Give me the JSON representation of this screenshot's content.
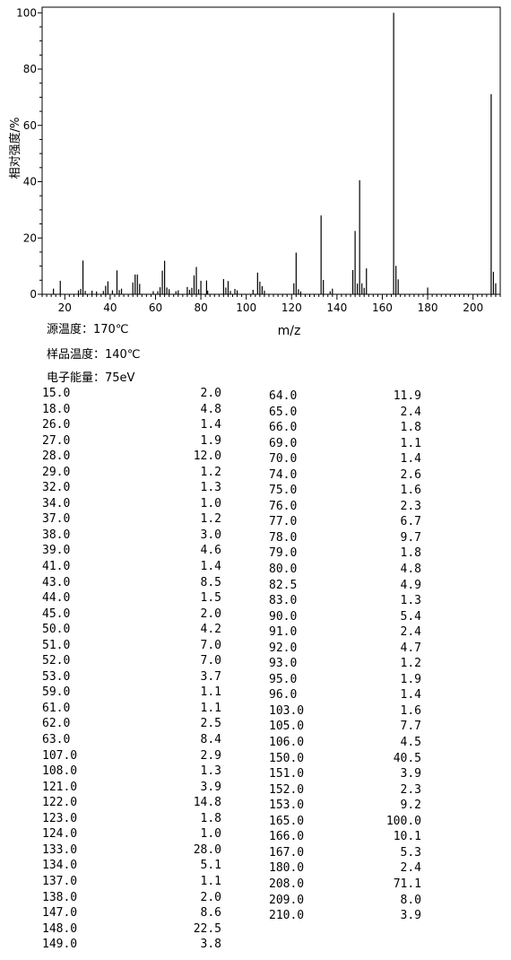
{
  "chart_data": {
    "type": "bar",
    "ylabel": "相对强度/%",
    "xlabel": "m/z",
    "xlim": [
      10,
      212
    ],
    "ylim": [
      0,
      102
    ],
    "x_ticks": [
      20,
      40,
      60,
      80,
      100,
      120,
      140,
      160,
      180,
      200
    ],
    "y_ticks": [
      0,
      20,
      40,
      60,
      80,
      100
    ],
    "peaks": [
      [
        15.0,
        2.0
      ],
      [
        18.0,
        4.8
      ],
      [
        26.0,
        1.4
      ],
      [
        27.0,
        1.9
      ],
      [
        28.0,
        12.0
      ],
      [
        29.0,
        1.2
      ],
      [
        32.0,
        1.3
      ],
      [
        34.0,
        1.0
      ],
      [
        37.0,
        1.2
      ],
      [
        38.0,
        3.0
      ],
      [
        39.0,
        4.6
      ],
      [
        41.0,
        1.4
      ],
      [
        43.0,
        8.5
      ],
      [
        44.0,
        1.5
      ],
      [
        45.0,
        2.0
      ],
      [
        50.0,
        4.2
      ],
      [
        51.0,
        7.0
      ],
      [
        52.0,
        7.0
      ],
      [
        53.0,
        3.7
      ],
      [
        59.0,
        1.1
      ],
      [
        61.0,
        1.1
      ],
      [
        62.0,
        2.5
      ],
      [
        63.0,
        8.4
      ],
      [
        64.0,
        11.9
      ],
      [
        65.0,
        2.4
      ],
      [
        66.0,
        1.8
      ],
      [
        69.0,
        1.1
      ],
      [
        70.0,
        1.4
      ],
      [
        74.0,
        2.6
      ],
      [
        75.0,
        1.6
      ],
      [
        76.0,
        2.3
      ],
      [
        77.0,
        6.7
      ],
      [
        78.0,
        9.7
      ],
      [
        79.0,
        1.8
      ],
      [
        80.0,
        4.8
      ],
      [
        82.5,
        4.9
      ],
      [
        83.0,
        1.3
      ],
      [
        90.0,
        5.4
      ],
      [
        91.0,
        2.4
      ],
      [
        92.0,
        4.7
      ],
      [
        93.0,
        1.2
      ],
      [
        95.0,
        1.9
      ],
      [
        96.0,
        1.4
      ],
      [
        103.0,
        1.6
      ],
      [
        105.0,
        7.7
      ],
      [
        106.0,
        4.5
      ],
      [
        107.0,
        2.9
      ],
      [
        108.0,
        1.3
      ],
      [
        121.0,
        3.9
      ],
      [
        122.0,
        14.8
      ],
      [
        123.0,
        1.8
      ],
      [
        124.0,
        1.0
      ],
      [
        133.0,
        28.0
      ],
      [
        134.0,
        5.1
      ],
      [
        137.0,
        1.1
      ],
      [
        138.0,
        2.0
      ],
      [
        147.0,
        8.6
      ],
      [
        148.0,
        22.5
      ],
      [
        149.0,
        3.8
      ],
      [
        150.0,
        40.5
      ],
      [
        151.0,
        3.9
      ],
      [
        152.0,
        2.3
      ],
      [
        153.0,
        9.2
      ],
      [
        165.0,
        100.0
      ],
      [
        166.0,
        10.1
      ],
      [
        167.0,
        5.3
      ],
      [
        180.0,
        2.4
      ],
      [
        208.0,
        71.1
      ],
      [
        209.0,
        8.0
      ],
      [
        210.0,
        3.9
      ]
    ]
  },
  "conditions": {
    "source_temp": "源温度：170℃",
    "sample_temp": "样品温度：140℃",
    "electron_energy": "电子能量：75eV"
  },
  "table_left": [
    [
      "15.0",
      "2.0"
    ],
    [
      "18.0",
      "4.8"
    ],
    [
      "26.0",
      "1.4"
    ],
    [
      "27.0",
      "1.9"
    ],
    [
      "28.0",
      "12.0"
    ],
    [
      "29.0",
      "1.2"
    ],
    [
      "32.0",
      "1.3"
    ],
    [
      "34.0",
      "1.0"
    ],
    [
      "37.0",
      "1.2"
    ],
    [
      "38.0",
      "3.0"
    ],
    [
      "39.0",
      "4.6"
    ],
    [
      "41.0",
      "1.4"
    ],
    [
      "43.0",
      "8.5"
    ],
    [
      "44.0",
      "1.5"
    ],
    [
      "45.0",
      "2.0"
    ],
    [
      "50.0",
      "4.2"
    ],
    [
      "51.0",
      "7.0"
    ],
    [
      "52.0",
      "7.0"
    ],
    [
      "53.0",
      "3.7"
    ],
    [
      "59.0",
      "1.1"
    ],
    [
      "61.0",
      "1.1"
    ],
    [
      "62.0",
      "2.5"
    ],
    [
      "63.0",
      "8.4"
    ],
    [
      "107.0",
      "2.9"
    ],
    [
      "108.0",
      "1.3"
    ],
    [
      "121.0",
      "3.9"
    ],
    [
      "122.0",
      "14.8"
    ],
    [
      "123.0",
      "1.8"
    ],
    [
      "124.0",
      "1.0"
    ],
    [
      "133.0",
      "28.0"
    ],
    [
      "134.0",
      "5.1"
    ],
    [
      "137.0",
      "1.1"
    ],
    [
      "138.0",
      "2.0"
    ],
    [
      "147.0",
      "8.6"
    ],
    [
      "148.0",
      "22.5"
    ],
    [
      "149.0",
      "3.8"
    ]
  ],
  "table_right": [
    [
      "64.0",
      "11.9"
    ],
    [
      "65.0",
      "2.4"
    ],
    [
      "66.0",
      "1.8"
    ],
    [
      "69.0",
      "1.1"
    ],
    [
      "70.0",
      "1.4"
    ],
    [
      "74.0",
      "2.6"
    ],
    [
      "75.0",
      "1.6"
    ],
    [
      "76.0",
      "2.3"
    ],
    [
      "77.0",
      "6.7"
    ],
    [
      "78.0",
      "9.7"
    ],
    [
      "79.0",
      "1.8"
    ],
    [
      "80.0",
      "4.8"
    ],
    [
      "82.5",
      "4.9"
    ],
    [
      "83.0",
      "1.3"
    ],
    [
      "90.0",
      "5.4"
    ],
    [
      "91.0",
      "2.4"
    ],
    [
      "92.0",
      "4.7"
    ],
    [
      "93.0",
      "1.2"
    ],
    [
      "95.0",
      "1.9"
    ],
    [
      "96.0",
      "1.4"
    ],
    [
      "103.0",
      "1.6"
    ],
    [
      "105.0",
      "7.7"
    ],
    [
      "106.0",
      "4.5"
    ],
    [
      "150.0",
      "40.5"
    ],
    [
      "151.0",
      "3.9"
    ],
    [
      "152.0",
      "2.3"
    ],
    [
      "153.0",
      "9.2"
    ],
    [
      "165.0",
      "100.0"
    ],
    [
      "166.0",
      "10.1"
    ],
    [
      "167.0",
      "5.3"
    ],
    [
      "180.0",
      "2.4"
    ],
    [
      "208.0",
      "71.1"
    ],
    [
      "209.0",
      "8.0"
    ],
    [
      "210.0",
      "3.9"
    ]
  ]
}
